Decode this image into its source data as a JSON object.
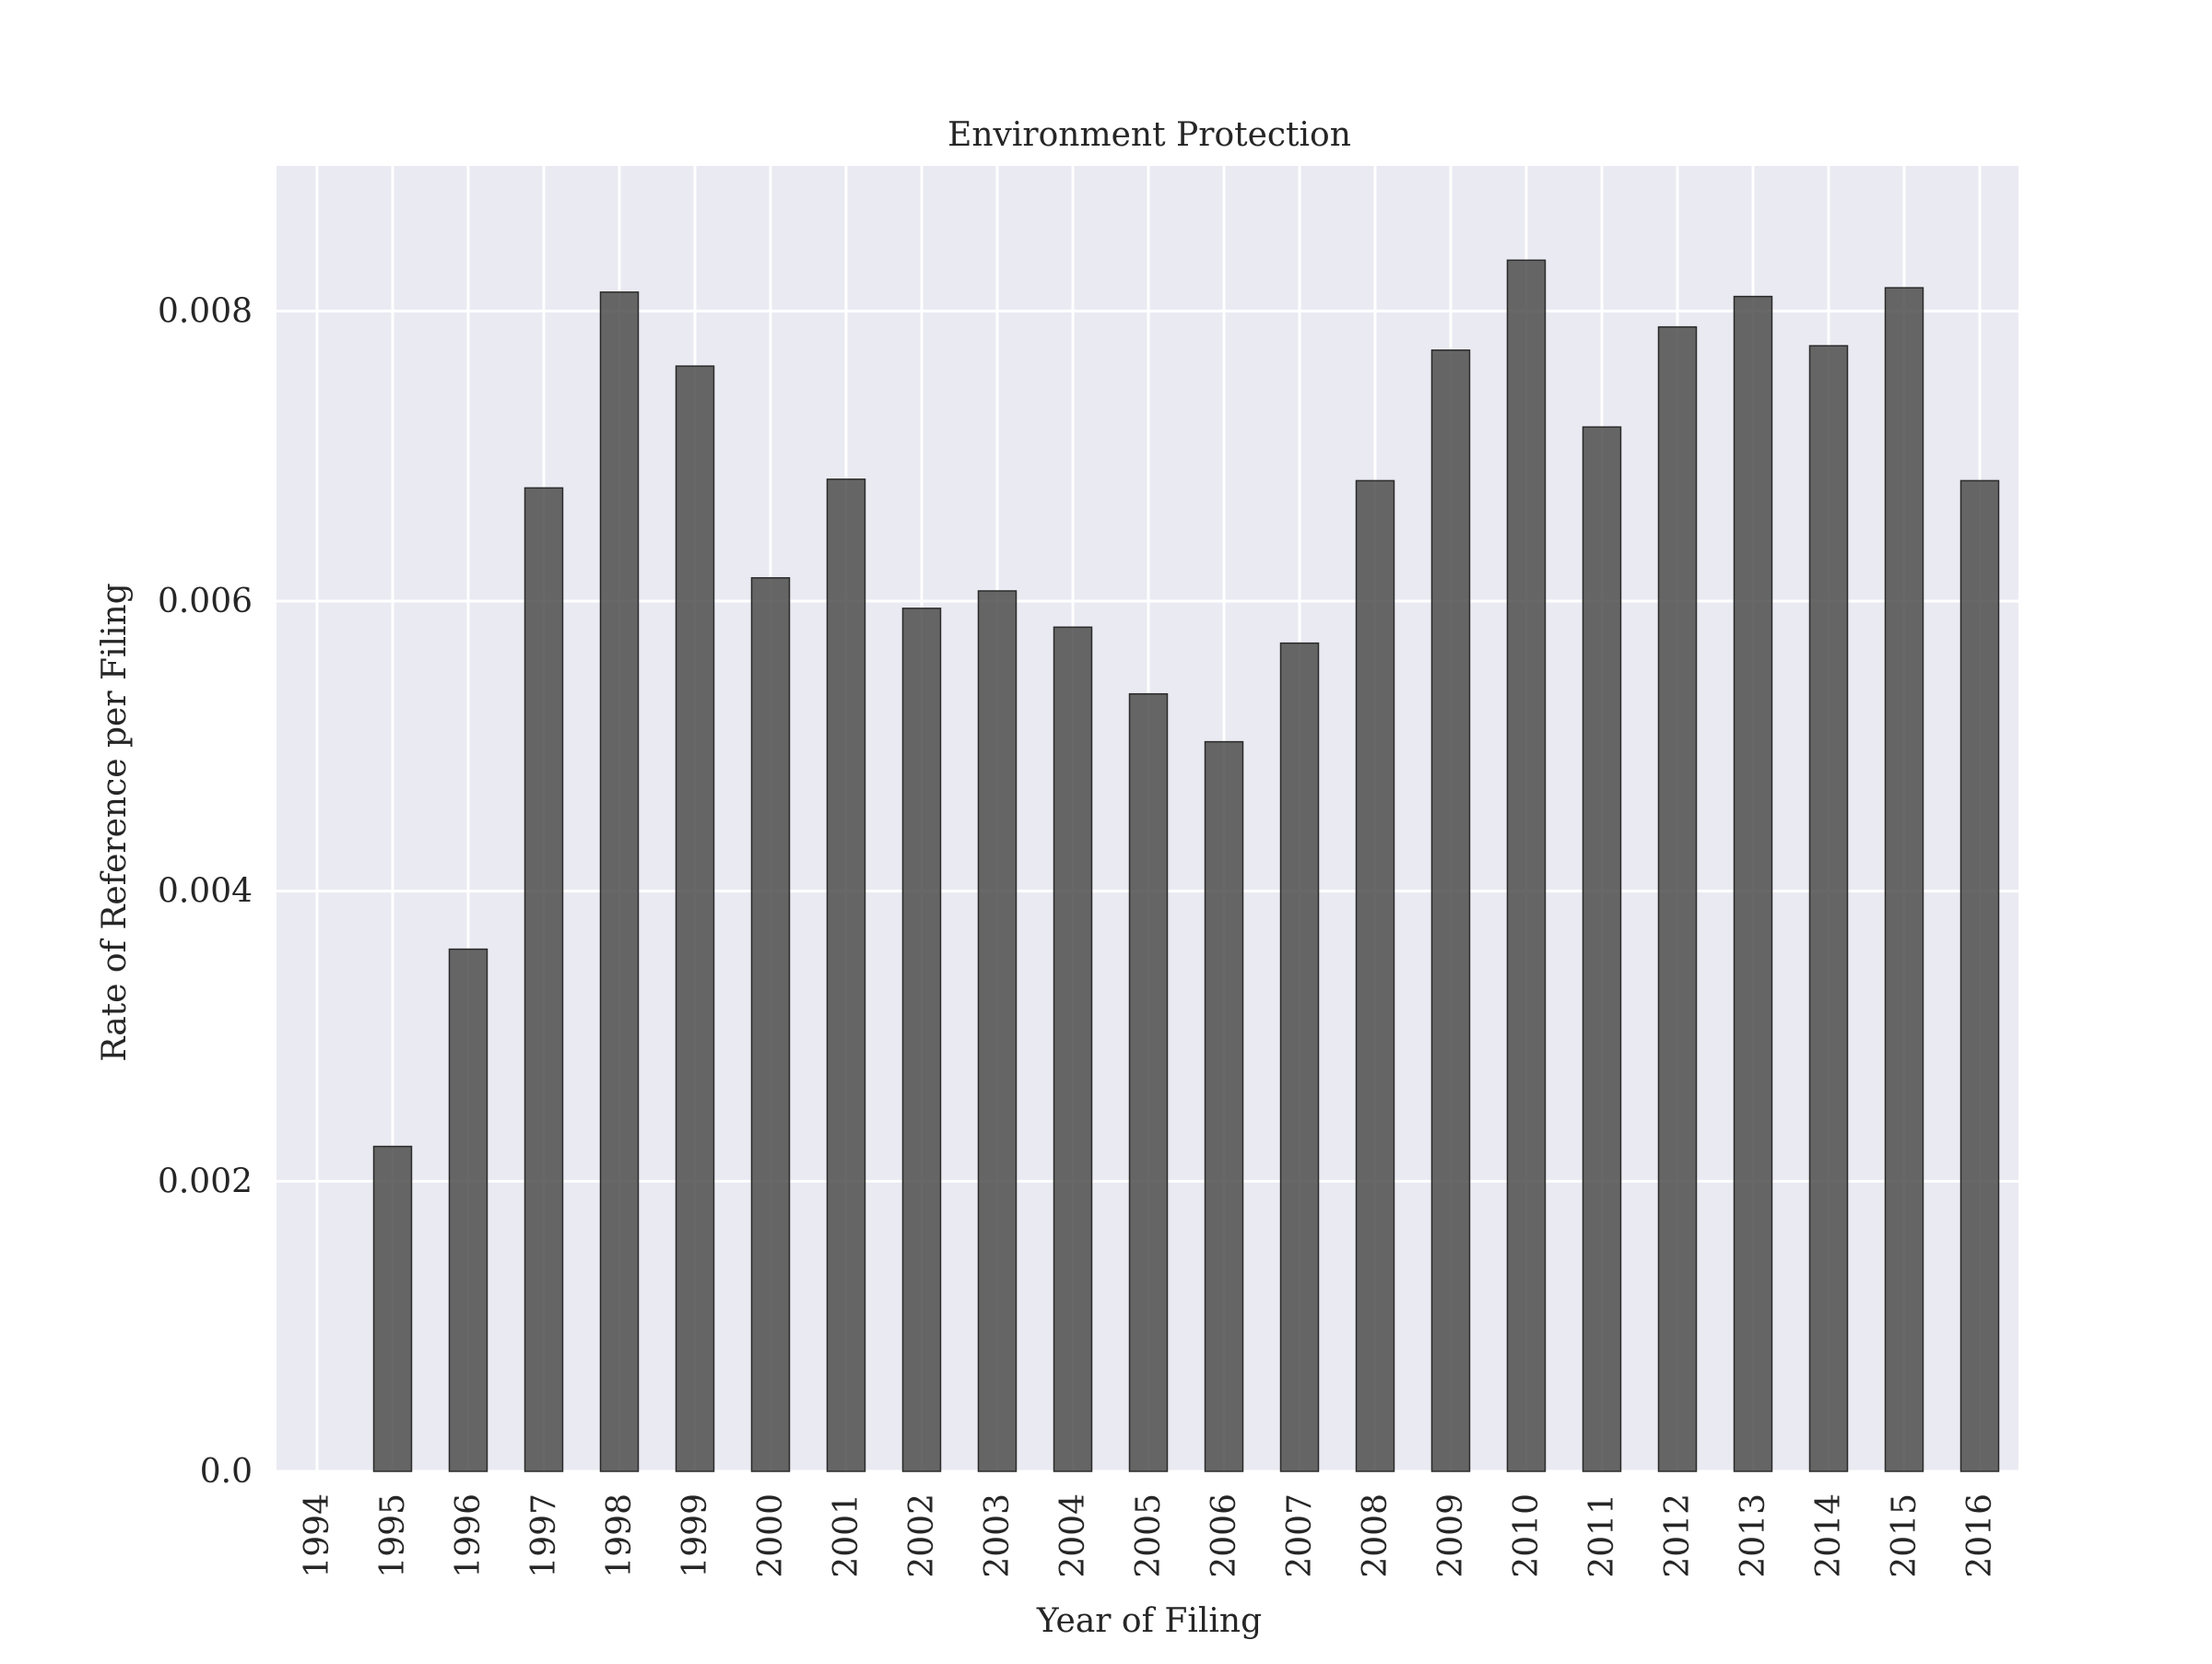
{
  "chart_data": {
    "type": "bar",
    "title": "Environment Protection",
    "xlabel": "Year of Filing",
    "ylabel": "Rate of Reference per Filing",
    "categories": [
      "1994",
      "1995",
      "1996",
      "1997",
      "1998",
      "1999",
      "2000",
      "2001",
      "2002",
      "2003",
      "2004",
      "2005",
      "2006",
      "2007",
      "2008",
      "2009",
      "2010",
      "2011",
      "2012",
      "2013",
      "2014",
      "2015",
      "2016"
    ],
    "values": [
      0.0,
      0.00224,
      0.0036,
      0.00678,
      0.00813,
      0.00762,
      0.00616,
      0.00684,
      0.00595,
      0.00607,
      0.00582,
      0.00536,
      0.00503,
      0.00571,
      0.00683,
      0.00773,
      0.00835,
      0.0072,
      0.00789,
      0.0081,
      0.00776,
      0.00816,
      0.00683
    ],
    "ylim": [
      0,
      0.009
    ],
    "yticks": [
      0.0,
      0.002,
      0.004,
      0.006,
      0.008
    ],
    "ytick_labels": [
      "0.0",
      "0.002",
      "0.004",
      "0.006",
      "0.008"
    ],
    "grid": true,
    "colors": {
      "plot_background": "#eaeaf2",
      "grid": "#ffffff",
      "bar_fill": "#4d4d4d",
      "bar_edge": "#2b2b2b"
    }
  }
}
